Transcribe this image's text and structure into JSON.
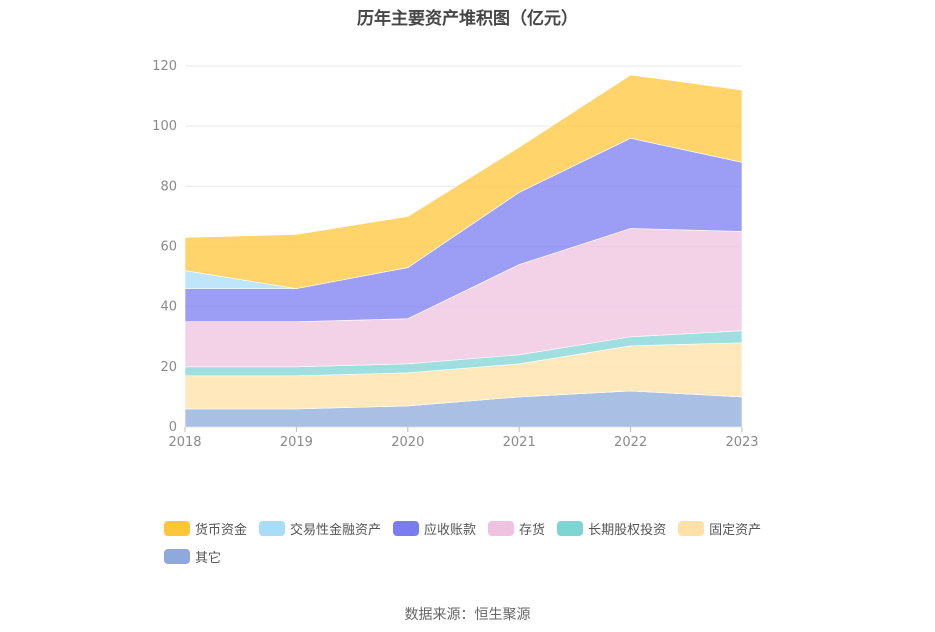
{
  "chart_data": {
    "type": "area",
    "stacked": true,
    "title": "历年主要资产堆积图（亿元）",
    "x": [
      "2018",
      "2019",
      "2020",
      "2021",
      "2022",
      "2023"
    ],
    "ylim": [
      0,
      120
    ],
    "yticks": [
      "0",
      "20",
      "40",
      "60",
      "80",
      "100",
      "120"
    ],
    "grid": true,
    "legend_position": "bottom",
    "series": [
      {
        "name": "其它",
        "color": "#8eaadb",
        "values": [
          6,
          6,
          7,
          10,
          12,
          10
        ]
      },
      {
        "name": "固定资产",
        "color": "#ffe0a6",
        "values": [
          11,
          11,
          11,
          11,
          15,
          18
        ]
      },
      {
        "name": "长期股权投资",
        "color": "#7fd4d4",
        "values": [
          3,
          3,
          3,
          3,
          3,
          4
        ]
      },
      {
        "name": "存货",
        "color": "#efc3e0",
        "values": [
          15,
          15,
          15,
          30,
          36,
          33
        ]
      },
      {
        "name": "应收账款",
        "color": "#7b7cf2",
        "values": [
          11,
          11,
          17,
          24,
          30,
          23
        ]
      },
      {
        "name": "交易性金融资产",
        "color": "#a8dcf7",
        "values": [
          6,
          0,
          0,
          0,
          0,
          0
        ]
      },
      {
        "name": "货币资金",
        "color": "#fdc53a",
        "values": [
          11,
          18,
          17,
          15,
          21,
          24
        ]
      }
    ],
    "legend_order": [
      "货币资金",
      "交易性金融资产",
      "应收账款",
      "存货",
      "长期股权投资",
      "固定资产",
      "其它"
    ]
  },
  "source": "数据来源：恒生聚源"
}
